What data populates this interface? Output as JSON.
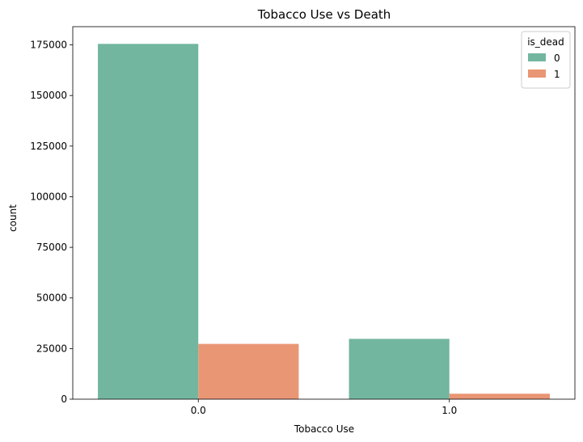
{
  "chart_data": {
    "type": "bar",
    "title": "Tobacco Use vs Death",
    "xlabel": "Tobacco Use",
    "ylabel": "count",
    "categories": [
      "0.0",
      "1.0"
    ],
    "series": [
      {
        "name": "0",
        "color": "#72b6a0",
        "values": [
          175500,
          29800
        ]
      },
      {
        "name": "1",
        "color": "#e99675",
        "values": [
          27300,
          2700
        ]
      }
    ],
    "yticks": [
      0,
      25000,
      50000,
      75000,
      100000,
      125000,
      150000,
      175000
    ],
    "ylim": [
      0,
      184000
    ],
    "grid": false,
    "legend": {
      "title": "is_dead",
      "placement": "top-right"
    }
  }
}
